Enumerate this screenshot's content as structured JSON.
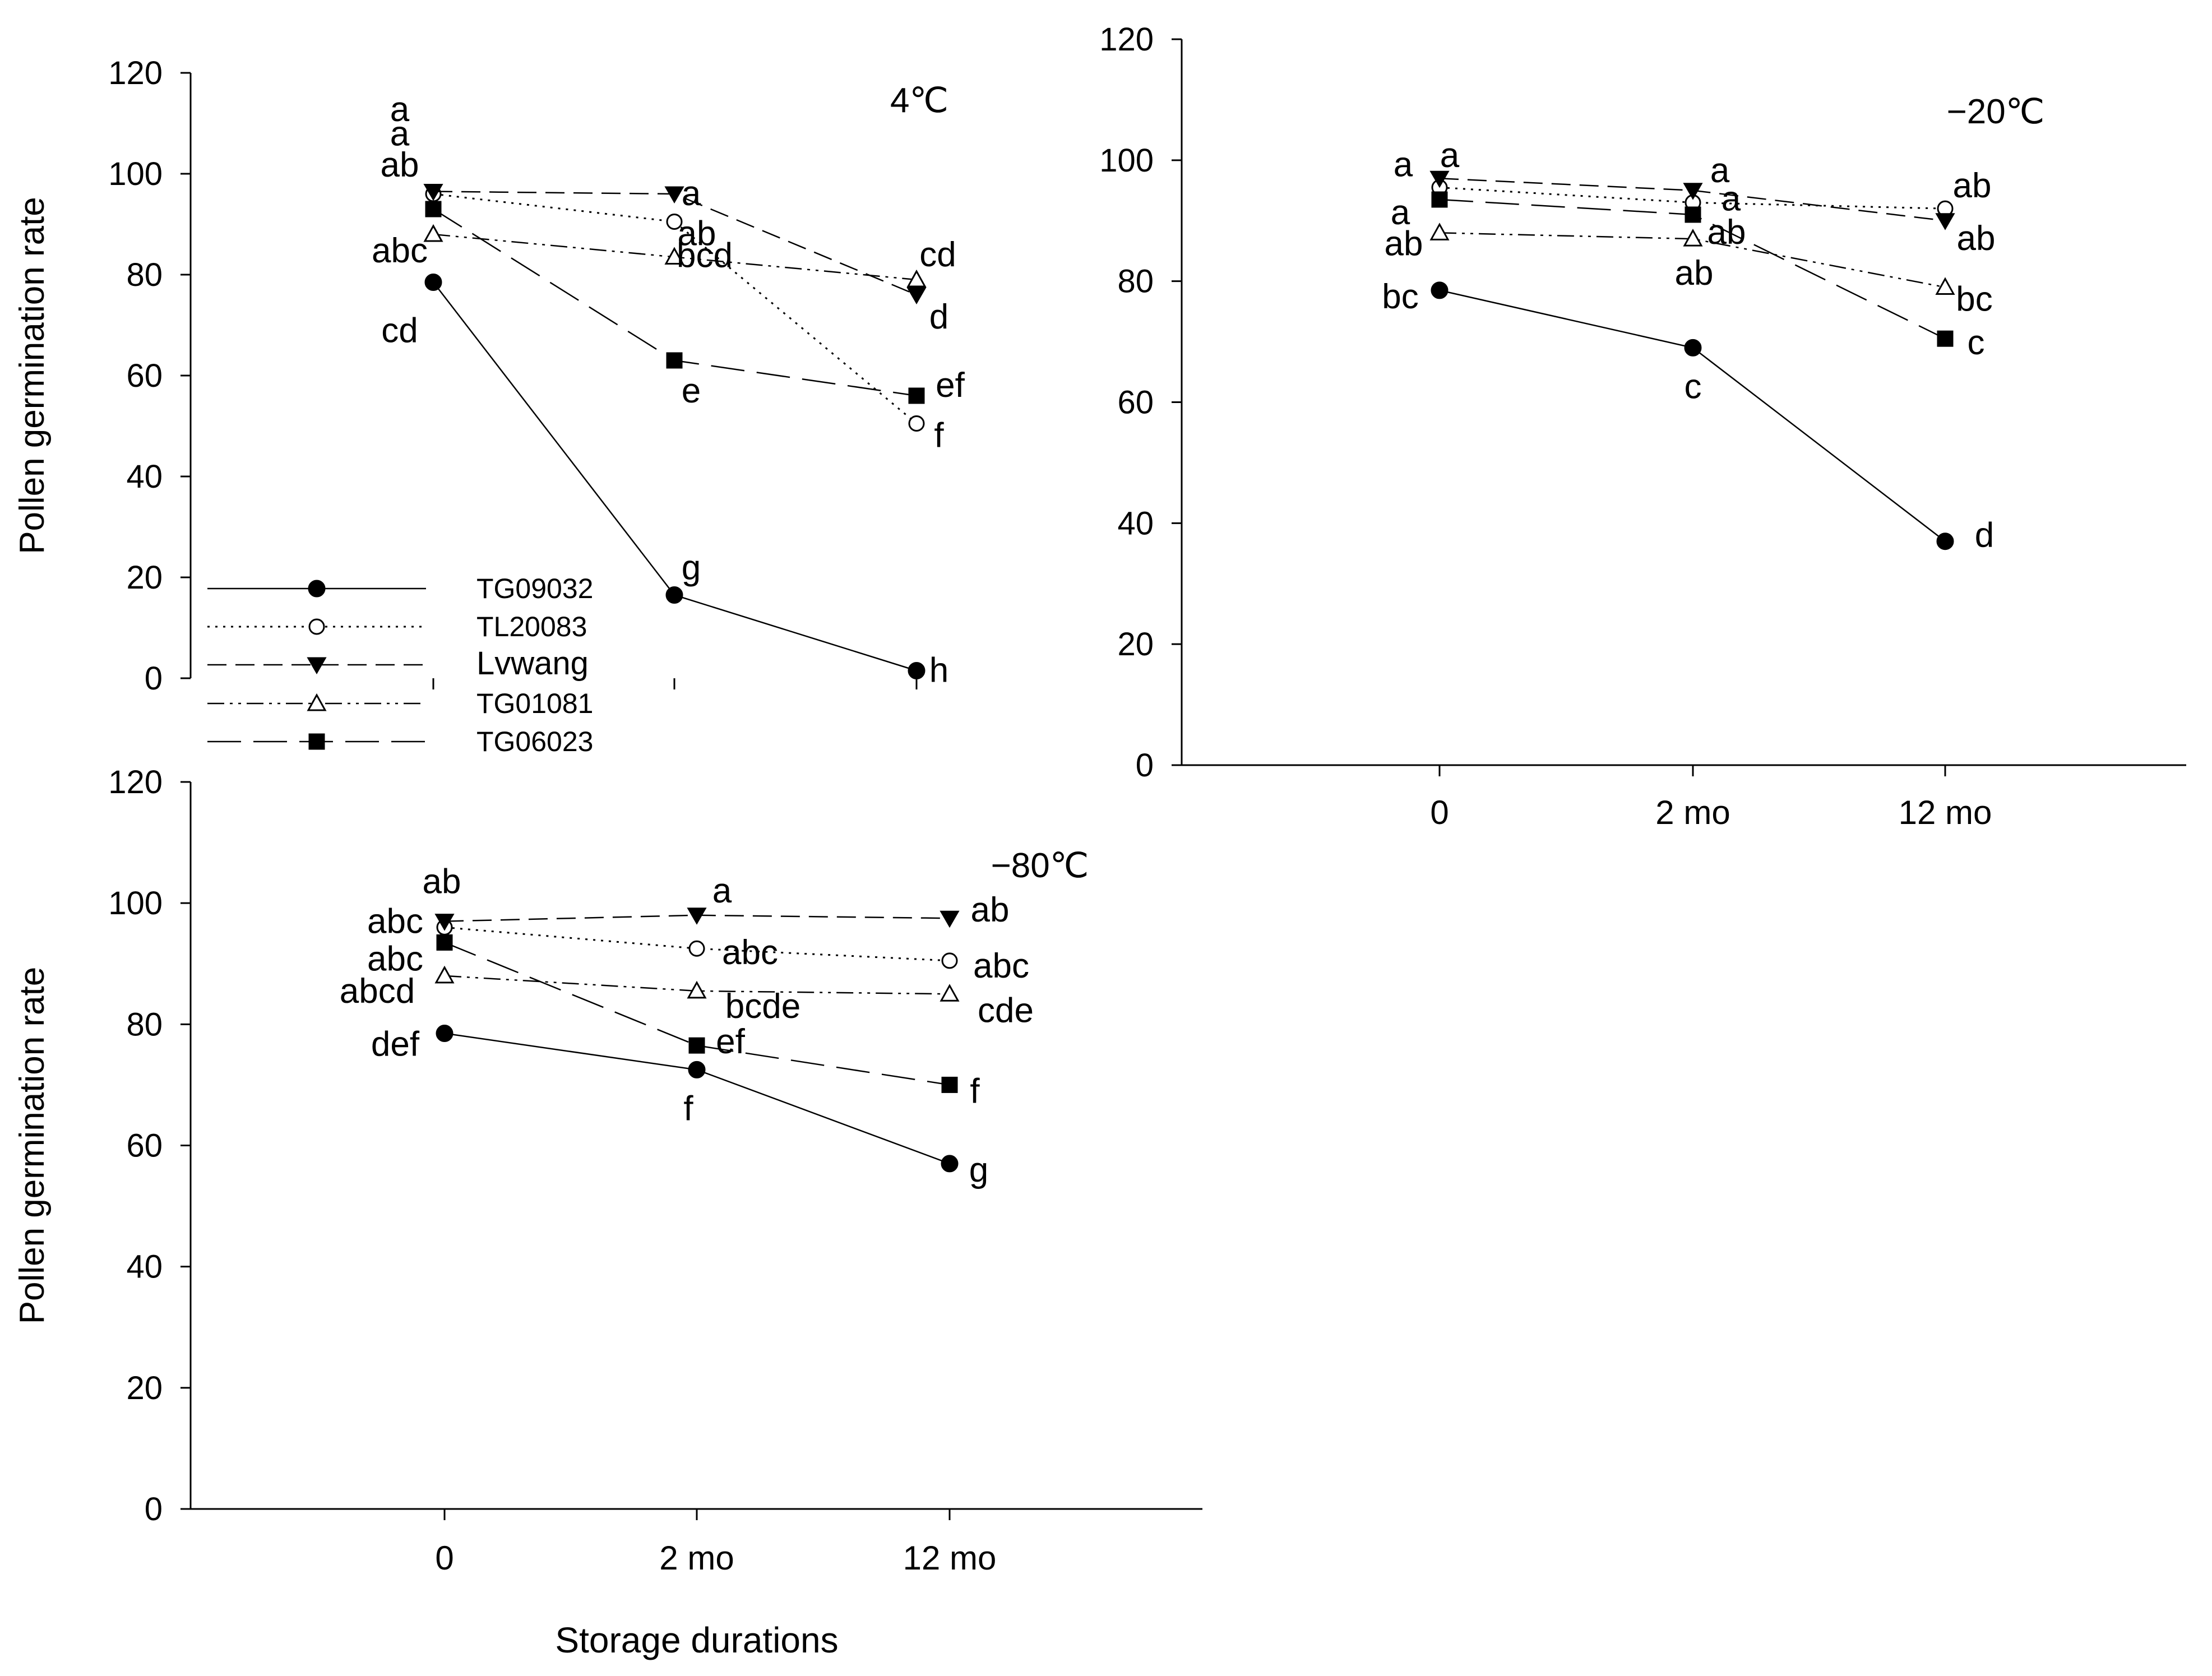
{
  "figure": {
    "xlabel": "Storage durations",
    "ylabel": "Pollen germination rate"
  },
  "legend": [
    {
      "name": "TG09032",
      "marker": "filled-circle",
      "dash": "solid"
    },
    {
      "name": "TL20083",
      "marker": "open-circle",
      "dash": "dotted"
    },
    {
      "name": "Lvwang",
      "marker": "filled-triangle-down",
      "dash": "dashed"
    },
    {
      "name": "TG01081",
      "marker": "open-triangle-up",
      "dash": "dash-dot-dot"
    },
    {
      "name": "TG06023",
      "marker": "filled-square",
      "dash": "long-dash"
    }
  ],
  "colors": {
    "line": "#000000",
    "background": "#ffffff"
  },
  "chart_data": [
    {
      "type": "line",
      "title": "4℃",
      "categories": [
        "0",
        "2 mo",
        "12 mo"
      ],
      "show_xticklabels": false,
      "xlabel": "",
      "ylabel": "Pollen germination rate",
      "ylim": [
        0,
        120
      ],
      "yticks": [
        "0",
        "20",
        "40",
        "60",
        "80",
        "100",
        "120"
      ],
      "series": [
        {
          "name": "TG09032",
          "values": [
            78.5,
            16.5,
            1.5
          ],
          "letters": [
            "cd",
            "g",
            "h"
          ]
        },
        {
          "name": "TL20083",
          "values": [
            96,
            90.5,
            50.5
          ],
          "letters": [
            "a",
            "ab",
            "f"
          ]
        },
        {
          "name": "Lvwang",
          "values": [
            96.5,
            96,
            76
          ],
          "letters": [
            "a",
            "a",
            "d"
          ]
        },
        {
          "name": "TG01081",
          "values": [
            88,
            83.5,
            79
          ],
          "letters": [
            "abc",
            "bcd",
            "cd"
          ]
        },
        {
          "name": "TG06023",
          "values": [
            93,
            63,
            56
          ],
          "letters": [
            "ab",
            "e",
            "ef"
          ]
        }
      ]
    },
    {
      "type": "line",
      "title": "−20℃",
      "categories": [
        "0",
        "2 mo",
        "12 mo"
      ],
      "show_xticklabels": true,
      "xlabel": "",
      "ylabel": "",
      "ylim": [
        0,
        120
      ],
      "yticks": [
        "0",
        "20",
        "40",
        "60",
        "80",
        "100",
        "120"
      ],
      "series": [
        {
          "name": "TG09032",
          "values": [
            78.5,
            69,
            37
          ],
          "letters": [
            "bc",
            "c",
            "d"
          ]
        },
        {
          "name": "TL20083",
          "values": [
            95.5,
            93,
            92
          ],
          "letters": [
            "a",
            "a",
            "ab"
          ]
        },
        {
          "name": "Lvwang",
          "values": [
            97,
            95,
            90
          ],
          "letters": [
            "a",
            "a",
            "ab"
          ]
        },
        {
          "name": "TG01081",
          "values": [
            88,
            87,
            79
          ],
          "letters": [
            "ab",
            "ab",
            "bc"
          ]
        },
        {
          "name": "TG06023",
          "values": [
            93.5,
            91,
            70.5
          ],
          "letters": [
            "a",
            "ab",
            "c"
          ]
        }
      ]
    },
    {
      "type": "line",
      "title": "−80℃",
      "categories": [
        "0",
        "2 mo",
        "12 mo"
      ],
      "show_xticklabels": true,
      "xlabel": "Storage durations",
      "ylabel": "Pollen germination rate",
      "ylim": [
        0,
        120
      ],
      "yticks": [
        "0",
        "20",
        "40",
        "60",
        "80",
        "100",
        "120"
      ],
      "series": [
        {
          "name": "TG09032",
          "values": [
            78.5,
            72.5,
            57
          ],
          "letters": [
            "def",
            "f",
            "g"
          ]
        },
        {
          "name": "TL20083",
          "values": [
            96,
            92.5,
            90.5
          ],
          "letters": [
            "abc",
            "abc",
            "abc"
          ]
        },
        {
          "name": "Lvwang",
          "values": [
            97,
            98,
            97.5
          ],
          "letters": [
            "ab",
            "a",
            "ab"
          ]
        },
        {
          "name": "TG01081",
          "values": [
            88,
            85.5,
            85
          ],
          "letters": [
            "abcd",
            "bcde",
            "cde"
          ]
        },
        {
          "name": "TG06023",
          "values": [
            93.5,
            76.5,
            70
          ],
          "letters": [
            "abc",
            "ef",
            "f"
          ]
        }
      ]
    }
  ]
}
